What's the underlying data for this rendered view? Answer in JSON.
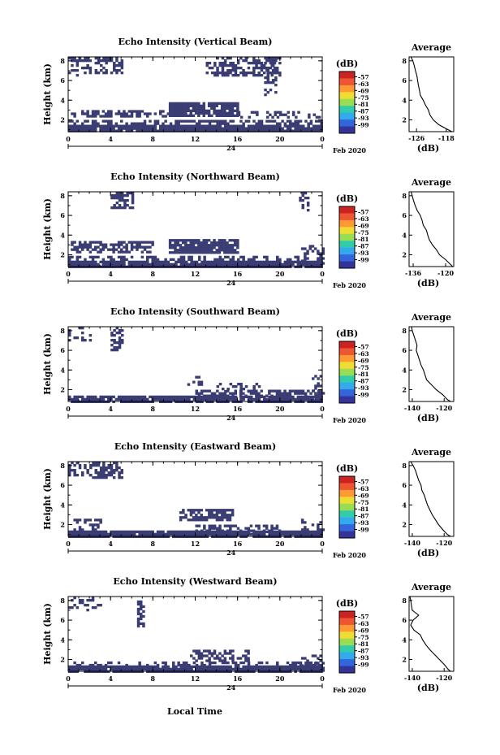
{
  "figure": {
    "xlabel": "Local Time",
    "date_label": "Feb 2020",
    "day_label": "24",
    "colorbar_unit": "(dB)",
    "colorbar_ticks": [
      "-57",
      "-63",
      "-69",
      "-75",
      "-81",
      "-87",
      "-93",
      "-99"
    ],
    "colorbar_colors": [
      "#cc2222",
      "#ee5533",
      "#ff9933",
      "#eedd33",
      "#99dd55",
      "#33ccaa",
      "#33aaee",
      "#3366dd",
      "#333399"
    ],
    "no_data_color": "#ffffff",
    "echo_color": "#3a3d73"
  },
  "chart_data": [
    {
      "type": "heatmap",
      "title": "Echo Intensity (Vertical Beam)",
      "ylabel": "Height (km)",
      "x_ticks": [
        "0",
        "4",
        "8",
        "12",
        "16",
        "20",
        "0"
      ],
      "y_ticks": [
        "8",
        "6",
        "4",
        "2"
      ],
      "xlim": [
        0,
        24
      ],
      "ylim": [
        0.8,
        8.4
      ],
      "echo_regions": [
        {
          "x": [
            0,
            24
          ],
          "y": [
            0.8,
            1.5
          ],
          "density": 0.95
        },
        {
          "x": [
            0,
            24
          ],
          "y": [
            1.5,
            2.0
          ],
          "density": 0.5
        },
        {
          "x": [
            9.5,
            16
          ],
          "y": [
            2.5,
            3.8
          ],
          "density": 0.85
        },
        {
          "x": [
            0,
            9.5
          ],
          "y": [
            2.4,
            3.0
          ],
          "density": 0.55
        },
        {
          "x": [
            16,
            24
          ],
          "y": [
            2.2,
            2.9
          ],
          "density": 0.4
        },
        {
          "x": [
            2.5,
            5
          ],
          "y": [
            6.8,
            8.4
          ],
          "density": 0.55
        },
        {
          "x": [
            0,
            2
          ],
          "y": [
            6.5,
            8.4
          ],
          "density": 0.35
        },
        {
          "x": [
            13,
            20
          ],
          "y": [
            6.5,
            8.4
          ],
          "density": 0.5
        },
        {
          "x": [
            18.5,
            19.5
          ],
          "y": [
            4.5,
            8.4
          ],
          "density": 0.4
        }
      ],
      "average_profile": {
        "title": "Average",
        "xlabel": "(dB)",
        "x_ticks": [
          "-126",
          "-118"
        ],
        "xlim": [
          -128,
          -116
        ],
        "ylim": [
          0.8,
          8.4
        ],
        "y_ticks": [
          "8",
          "6",
          "4",
          "2"
        ],
        "height": [
          8.4,
          8.0,
          7.5,
          7.0,
          6.5,
          6.0,
          5.5,
          5.0,
          4.5,
          4.0,
          3.5,
          3.0,
          2.5,
          2.0,
          1.5,
          1.0,
          0.8
        ],
        "value": [
          -127.5,
          -127.0,
          -126.6,
          -126.3,
          -125.9,
          -125.7,
          -125.5,
          -125.2,
          -125.0,
          -124.2,
          -123.6,
          -122.8,
          -122.4,
          -121.5,
          -120.0,
          -117.5,
          -116.5
        ]
      }
    },
    {
      "type": "heatmap",
      "title": "Echo Intensity (Northward Beam)",
      "ylabel": "Height (km)",
      "x_ticks": [
        "0",
        "4",
        "8",
        "12",
        "16",
        "20",
        "0"
      ],
      "y_ticks": [
        "8",
        "6",
        "4",
        "2"
      ],
      "xlim": [
        0,
        24
      ],
      "ylim": [
        0.8,
        8.4
      ],
      "echo_regions": [
        {
          "x": [
            0,
            24
          ],
          "y": [
            0.8,
            1.4
          ],
          "density": 0.95
        },
        {
          "x": [
            0,
            24
          ],
          "y": [
            1.4,
            1.9
          ],
          "density": 0.4
        },
        {
          "x": [
            9.5,
            16
          ],
          "y": [
            2.3,
            3.6
          ],
          "density": 0.85
        },
        {
          "x": [
            0,
            8
          ],
          "y": [
            2.4,
            3.4
          ],
          "density": 0.6
        },
        {
          "x": [
            22,
            24
          ],
          "y": [
            1.2,
            3.0
          ],
          "density": 0.45
        },
        {
          "x": [
            4,
            6
          ],
          "y": [
            6.8,
            8.4
          ],
          "density": 0.6
        },
        {
          "x": [
            21.8,
            22.6
          ],
          "y": [
            6.5,
            8.4
          ],
          "density": 0.55
        }
      ],
      "average_profile": {
        "title": "Average",
        "xlabel": "(dB)",
        "x_ticks": [
          "-136",
          "-120"
        ],
        "xlim": [
          -138,
          -116
        ],
        "ylim": [
          0.8,
          8.4
        ],
        "y_ticks": [
          "8",
          "6",
          "4",
          "2"
        ],
        "height": [
          8.4,
          8.0,
          7.5,
          7.0,
          6.5,
          6.0,
          5.5,
          5.0,
          4.5,
          4.0,
          3.5,
          3.0,
          2.5,
          2.0,
          1.5,
          1.0,
          0.8
        ],
        "value": [
          -137.0,
          -136.5,
          -135.8,
          -135.0,
          -134.0,
          -132.5,
          -131.6,
          -131.0,
          -129.5,
          -128.8,
          -128.0,
          -126.5,
          -124.5,
          -123.0,
          -120.0,
          -117.5,
          -116.5
        ]
      }
    },
    {
      "type": "heatmap",
      "title": "Echo Intensity (Southward Beam)",
      "ylabel": "Height (km)",
      "x_ticks": [
        "0",
        "4",
        "8",
        "12",
        "16",
        "20",
        "0"
      ],
      "y_ticks": [
        "8",
        "6",
        "4",
        "2"
      ],
      "xlim": [
        0,
        24
      ],
      "ylim": [
        0.8,
        8.4
      ],
      "echo_regions": [
        {
          "x": [
            0,
            24
          ],
          "y": [
            0.8,
            1.4
          ],
          "density": 0.9
        },
        {
          "x": [
            12,
            24
          ],
          "y": [
            1.4,
            2.0
          ],
          "density": 0.45
        },
        {
          "x": [
            14,
            18
          ],
          "y": [
            1.8,
            2.7
          ],
          "density": 0.35
        },
        {
          "x": [
            11,
            12.5
          ],
          "y": [
            2.6,
            3.4
          ],
          "density": 0.35
        },
        {
          "x": [
            4,
            5
          ],
          "y": [
            6.0,
            8.4
          ],
          "density": 0.6
        },
        {
          "x": [
            0,
            2
          ],
          "y": [
            7.0,
            8.4
          ],
          "density": 0.3
        },
        {
          "x": [
            23,
            24
          ],
          "y": [
            1.0,
            3.5
          ],
          "density": 0.35
        }
      ],
      "average_profile": {
        "title": "Average",
        "xlabel": "(dB)",
        "x_ticks": [
          "-140",
          "-120"
        ],
        "xlim": [
          -142,
          -114
        ],
        "ylim": [
          0.8,
          8.4
        ],
        "y_ticks": [
          "8",
          "6",
          "4",
          "2"
        ],
        "height": [
          8.4,
          8.0,
          7.5,
          7.0,
          6.5,
          6.0,
          5.5,
          5.0,
          4.5,
          4.0,
          3.5,
          3.0,
          2.5,
          2.0,
          1.5,
          1.0,
          0.8
        ],
        "value": [
          -140.5,
          -140.0,
          -139.0,
          -138.0,
          -137.0,
          -137.5,
          -136.5,
          -135.5,
          -134.5,
          -133.0,
          -132.0,
          -131.0,
          -128.0,
          -125.0,
          -121.0,
          -118.0,
          -116.0
        ]
      }
    },
    {
      "type": "heatmap",
      "title": "Echo Intensity (Eastward Beam)",
      "ylabel": "Height (km)",
      "x_ticks": [
        "0",
        "4",
        "8",
        "12",
        "16",
        "20",
        "0"
      ],
      "y_ticks": [
        "8",
        "6",
        "4",
        "2"
      ],
      "xlim": [
        0,
        24
      ],
      "ylim": [
        0.8,
        8.4
      ],
      "echo_regions": [
        {
          "x": [
            0,
            24
          ],
          "y": [
            0.8,
            1.4
          ],
          "density": 0.95
        },
        {
          "x": [
            12,
            20
          ],
          "y": [
            1.4,
            2.0
          ],
          "density": 0.4
        },
        {
          "x": [
            10.5,
            15.5
          ],
          "y": [
            2.6,
            3.6
          ],
          "density": 0.75
        },
        {
          "x": [
            2,
            5
          ],
          "y": [
            6.8,
            8.4
          ],
          "density": 0.6
        },
        {
          "x": [
            0,
            2
          ],
          "y": [
            7.0,
            8.4
          ],
          "density": 0.35
        },
        {
          "x": [
            0,
            3
          ],
          "y": [
            1.4,
            2.6
          ],
          "density": 0.3
        },
        {
          "x": [
            22,
            24
          ],
          "y": [
            1.2,
            2.6
          ],
          "density": 0.4
        }
      ],
      "average_profile": {
        "title": "Average",
        "xlabel": "(dB)",
        "x_ticks": [
          "-140",
          "-120"
        ],
        "xlim": [
          -142,
          -114
        ],
        "ylim": [
          0.8,
          8.4
        ],
        "y_ticks": [
          "8",
          "6",
          "4",
          "2"
        ],
        "height": [
          8.4,
          8.0,
          7.5,
          7.0,
          6.5,
          6.0,
          5.5,
          5.0,
          4.5,
          4.0,
          3.5,
          3.0,
          2.5,
          2.0,
          1.5,
          1.0,
          0.8
        ],
        "value": [
          -141.0,
          -139.5,
          -138.0,
          -137.0,
          -136.0,
          -134.5,
          -134.0,
          -132.5,
          -131.5,
          -130.5,
          -129.0,
          -127.5,
          -125.5,
          -123.5,
          -121.0,
          -118.0,
          -116.0
        ]
      }
    },
    {
      "type": "heatmap",
      "title": "Echo Intensity (Westward Beam)",
      "ylabel": "Height (km)",
      "x_ticks": [
        "0",
        "4",
        "8",
        "12",
        "16",
        "20",
        "0"
      ],
      "y_ticks": [
        "8",
        "6",
        "4",
        "2"
      ],
      "xlim": [
        0,
        24
      ],
      "ylim": [
        0.8,
        8.4
      ],
      "echo_regions": [
        {
          "x": [
            0,
            24
          ],
          "y": [
            0.8,
            1.4
          ],
          "density": 0.95
        },
        {
          "x": [
            0,
            24
          ],
          "y": [
            1.4,
            1.8
          ],
          "density": 0.35
        },
        {
          "x": [
            11.5,
            17
          ],
          "y": [
            1.8,
            3.0
          ],
          "density": 0.5
        },
        {
          "x": [
            6.5,
            7.2
          ],
          "y": [
            5.5,
            8.0
          ],
          "density": 0.7
        },
        {
          "x": [
            0,
            3
          ],
          "y": [
            7.0,
            8.4
          ],
          "density": 0.3
        },
        {
          "x": [
            22,
            24
          ],
          "y": [
            1.0,
            2.5
          ],
          "density": 0.4
        }
      ],
      "average_profile": {
        "title": "Average",
        "xlabel": "(dB)",
        "x_ticks": [
          "-140",
          "-120"
        ],
        "xlim": [
          -142,
          -114
        ],
        "ylim": [
          0.8,
          8.4
        ],
        "y_ticks": [
          "8",
          "6",
          "4",
          "2"
        ],
        "height": [
          8.4,
          8.0,
          7.5,
          7.0,
          6.5,
          6.0,
          5.5,
          5.0,
          4.5,
          4.0,
          3.5,
          3.0,
          2.5,
          2.0,
          1.5,
          1.0,
          0.8
        ],
        "value": [
          -141.5,
          -141.0,
          -140.5,
          -140.0,
          -136.0,
          -139.5,
          -141.0,
          -139.0,
          -135.0,
          -133.5,
          -131.5,
          -129.0,
          -126.0,
          -123.0,
          -120.0,
          -117.5,
          -116.0
        ]
      }
    }
  ]
}
